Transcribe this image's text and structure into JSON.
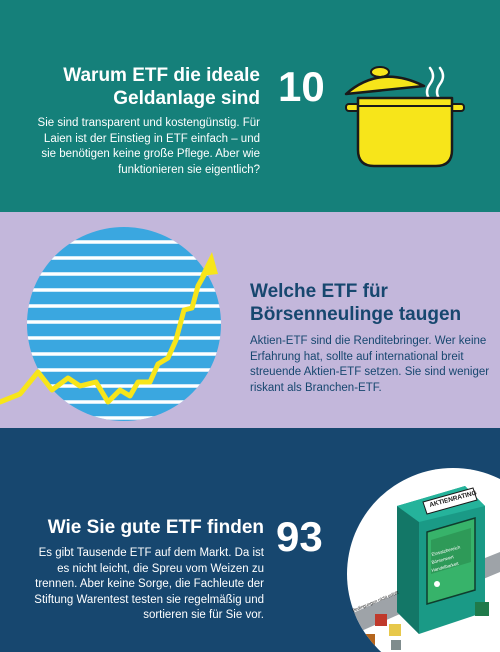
{
  "sections": [
    {
      "title": "Warum ETF die ideale Geldanlage sind",
      "number": "10",
      "text": "Sie sind transparent und kostengünstig. Für Laien ist der Einstieg in ETF einfach – und sie benötigen keine große Pflege. Aber wie funktionieren sie eigentlich?",
      "background": "#15807a",
      "icon": "cooking-pot-icon"
    },
    {
      "title": "Welche ETF für Börsenneulinge taugen",
      "text": "Aktien-ETF sind die Renditebringer. Wer keine Erfahrung hat, sollte auf internatio­nal breit streuende Aktien-ETF setzen. Sie sind weniger riskant als Branchen-ETF.",
      "background": "#c3b7db",
      "icon": "rising-chart-globe-icon"
    },
    {
      "title": "Wie Sie gute ETF finden",
      "number": "93",
      "text": "Es gibt Tausende ETF auf dem Markt. Da ist es nicht leicht, die Spreu vom Weizen zu trennen. Aber keine Sorge, die Fachleute der Stiftung Warentest testen sie regelmäßig und sortieren sie für Sie vor.",
      "background": "#17476f",
      "icon": "rating-machine-icon",
      "illustration": {
        "header": "AKTIENRATING",
        "screen_items": [
          "Einsatzbereich",
          "Börsenwert",
          "Handelbarkeit"
        ],
        "belt_label": "Bedingungen nicht erfüllt"
      }
    }
  ],
  "colors": {
    "teal": "#15807a",
    "lavender": "#c3b7db",
    "navy": "#17476f",
    "yellow": "#f7e51a",
    "sky": "#3aa7e0"
  }
}
